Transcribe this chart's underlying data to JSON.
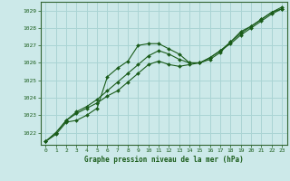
{
  "title": "Graphe pression niveau de la mer (hPa)",
  "background_color": "#cce9e9",
  "grid_color": "#aad4d4",
  "line_color": "#1a5c1a",
  "border_color": "#336633",
  "xlim": [
    -0.5,
    23.5
  ],
  "ylim": [
    1021.3,
    1029.5
  ],
  "yticks": [
    1022,
    1023,
    1024,
    1025,
    1026,
    1027,
    1028,
    1029
  ],
  "xticks": [
    0,
    1,
    2,
    3,
    4,
    5,
    6,
    7,
    8,
    9,
    10,
    11,
    12,
    13,
    14,
    15,
    16,
    17,
    18,
    19,
    20,
    21,
    22,
    23
  ],
  "series": [
    [
      1021.5,
      1021.9,
      1022.6,
      1022.7,
      1023.0,
      1023.4,
      1025.2,
      1025.7,
      1026.1,
      1027.0,
      1027.1,
      1027.1,
      1026.8,
      1026.5,
      1026.0,
      1026.0,
      1026.2,
      1026.6,
      1027.2,
      1027.8,
      1028.1,
      1028.5,
      1028.9,
      1029.1
    ],
    [
      1021.5,
      1022.0,
      1022.7,
      1023.1,
      1023.4,
      1023.7,
      1024.1,
      1024.4,
      1024.9,
      1025.4,
      1025.9,
      1026.1,
      1025.9,
      1025.8,
      1025.9,
      1026.0,
      1026.3,
      1026.7,
      1027.1,
      1027.6,
      1028.0,
      1028.4,
      1028.8,
      1029.1
    ],
    [
      1021.5,
      1022.0,
      1022.7,
      1023.2,
      1023.5,
      1023.9,
      1024.4,
      1024.9,
      1025.4,
      1025.9,
      1026.4,
      1026.7,
      1026.5,
      1026.2,
      1026.0,
      1026.0,
      1026.3,
      1026.7,
      1027.2,
      1027.7,
      1028.1,
      1028.5,
      1028.9,
      1029.2
    ]
  ]
}
